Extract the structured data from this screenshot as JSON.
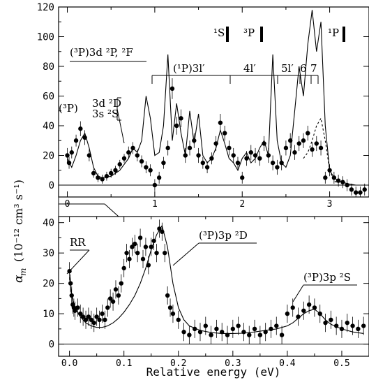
{
  "figure": {
    "y_label": "α",
    "y_label_sub": "m",
    "y_label_units": "(10⁻¹² cm³ s⁻¹)",
    "x_label": "Relative energy (eV)"
  },
  "chart_data": [
    {
      "type": "scatter",
      "panel": "top",
      "xlim": [
        -0.1,
        3.45
      ],
      "ylim": [
        -8,
        120
      ],
      "x_ticks": [
        "0",
        "1",
        "2",
        "3"
      ],
      "y_ticks": [
        "0",
        "20",
        "40",
        "60",
        "80",
        "100",
        "120"
      ],
      "grid": false,
      "annotations": [
        {
          "text": "(³P)3d ²P, ²F"
        },
        {
          "text": "(¹P)3l′"
        },
        {
          "text": "4l′"
        },
        {
          "text": "5l′"
        },
        {
          "text": "6"
        },
        {
          "text": "7"
        },
        {
          "text": "(³P)"
        },
        {
          "text": "3d ²D"
        },
        {
          "text": "3s ²S"
        },
        {
          "text": "¹S"
        },
        {
          "text": "³P"
        },
        {
          "text": "¹P"
        }
      ],
      "series": [
        {
          "style": "points_with_error_bars",
          "x": [
            0.0,
            0.02,
            0.05,
            0.1,
            0.15,
            0.2,
            0.25,
            0.3,
            0.35,
            0.4,
            0.45,
            0.5,
            0.55,
            0.6,
            0.65,
            0.7,
            0.75,
            0.8,
            0.85,
            0.9,
            0.95,
            1.0,
            1.05,
            1.1,
            1.15,
            1.2,
            1.25,
            1.3,
            1.35,
            1.4,
            1.45,
            1.5,
            1.55,
            1.6,
            1.65,
            1.7,
            1.75,
            1.8,
            1.85,
            1.9,
            1.95,
            2.0,
            2.05,
            2.1,
            2.15,
            2.2,
            2.25,
            2.3,
            2.35,
            2.4,
            2.45,
            2.5,
            2.55,
            2.6,
            2.65,
            2.7,
            2.75,
            2.8,
            2.85,
            2.9,
            2.95,
            3.0,
            3.05,
            3.1,
            3.15,
            3.2,
            3.25,
            3.3,
            3.35,
            3.4
          ],
          "y": [
            20,
            15,
            22,
            30,
            38,
            32,
            20,
            8,
            5,
            4,
            6,
            8,
            10,
            14,
            18,
            22,
            25,
            20,
            16,
            12,
            10,
            0,
            5,
            15,
            25,
            65,
            40,
            45,
            20,
            25,
            30,
            20,
            15,
            12,
            18,
            28,
            42,
            35,
            25,
            20,
            15,
            5,
            18,
            22,
            20,
            18,
            28,
            20,
            15,
            12,
            15,
            25,
            30,
            22,
            28,
            30,
            35,
            24,
            28,
            25,
            5,
            10,
            5,
            3,
            2,
            0,
            -3,
            -5,
            -5,
            -3
          ],
          "error": [
            5,
            4,
            4,
            4,
            5,
            5,
            4,
            3,
            3,
            3,
            3,
            3,
            3,
            3,
            3,
            4,
            4,
            4,
            4,
            4,
            4,
            4,
            4,
            4,
            5,
            7,
            6,
            6,
            5,
            5,
            5,
            5,
            4,
            4,
            4,
            5,
            6,
            5,
            5,
            5,
            4,
            4,
            5,
            5,
            5,
            5,
            5,
            5,
            5,
            5,
            5,
            5,
            5,
            5,
            5,
            5,
            5,
            5,
            5,
            5,
            4,
            4,
            4,
            4,
            4,
            4,
            4,
            4,
            4,
            4
          ]
        },
        {
          "style": "solid_line",
          "x": [
            0.0,
            0.05,
            0.1,
            0.15,
            0.2,
            0.25,
            0.3,
            0.35,
            0.4,
            0.5,
            0.6,
            0.7,
            0.75,
            0.8,
            0.85,
            0.9,
            0.95,
            1.0,
            1.05,
            1.1,
            1.15,
            1.2,
            1.25,
            1.3,
            1.35,
            1.4,
            1.45,
            1.5,
            1.55,
            1.6,
            1.65,
            1.7,
            1.75,
            1.8,
            1.85,
            1.9,
            1.95,
            2.0,
            2.05,
            2.1,
            2.15,
            2.2,
            2.25,
            2.3,
            2.35,
            2.4,
            2.45,
            2.5,
            2.55,
            2.6,
            2.65,
            2.7,
            2.75,
            2.8,
            2.85,
            2.9,
            2.95,
            3.0,
            3.05,
            3.1,
            3.2,
            3.3,
            3.4
          ],
          "y": [
            18,
            12,
            20,
            30,
            35,
            25,
            12,
            6,
            5,
            6,
            10,
            18,
            25,
            22,
            30,
            60,
            45,
            20,
            22,
            40,
            88,
            30,
            55,
            35,
            20,
            50,
            28,
            48,
            20,
            15,
            18,
            25,
            37,
            28,
            18,
            15,
            10,
            18,
            22,
            15,
            18,
            25,
            30,
            20,
            88,
            30,
            15,
            12,
            20,
            50,
            80,
            60,
            95,
            118,
            90,
            110,
            40,
            10,
            5,
            3,
            1,
            0,
            0
          ]
        },
        {
          "style": "dashed_line",
          "x": [
            2.7,
            2.75,
            2.8,
            2.85,
            2.9,
            2.95,
            3.0,
            3.05,
            3.1
          ],
          "y": [
            18,
            22,
            30,
            40,
            45,
            30,
            10,
            3,
            1
          ]
        }
      ]
    },
    {
      "type": "scatter",
      "panel": "bottom",
      "xlim": [
        -0.02,
        0.55
      ],
      "ylim": [
        -4,
        42
      ],
      "x_ticks": [
        "0.0",
        "0.1",
        "0.2",
        "0.3",
        "0.4",
        "0.5"
      ],
      "y_ticks": [
        "0",
        "10",
        "20",
        "30",
        "40"
      ],
      "grid": false,
      "annotations": [
        {
          "text": "RR"
        },
        {
          "text": "(³P)3p ²D"
        },
        {
          "text": "(³P)3p ²S"
        }
      ],
      "series": [
        {
          "style": "points_with_error_bars",
          "x": [
            0.0,
            0.002,
            0.004,
            0.006,
            0.008,
            0.01,
            0.015,
            0.02,
            0.025,
            0.03,
            0.035,
            0.04,
            0.045,
            0.05,
            0.055,
            0.06,
            0.065,
            0.07,
            0.075,
            0.08,
            0.085,
            0.09,
            0.095,
            0.1,
            0.105,
            0.11,
            0.115,
            0.12,
            0.125,
            0.13,
            0.135,
            0.14,
            0.145,
            0.15,
            0.155,
            0.16,
            0.165,
            0.17,
            0.175,
            0.18,
            0.185,
            0.19,
            0.2,
            0.21,
            0.22,
            0.23,
            0.24,
            0.25,
            0.26,
            0.27,
            0.28,
            0.29,
            0.3,
            0.31,
            0.32,
            0.33,
            0.34,
            0.35,
            0.36,
            0.37,
            0.38,
            0.39,
            0.4,
            0.41,
            0.42,
            0.43,
            0.44,
            0.45,
            0.46,
            0.47,
            0.48,
            0.49,
            0.5,
            0.51,
            0.52,
            0.53,
            0.54
          ],
          "y": [
            24,
            20,
            16,
            13,
            12,
            11,
            12,
            10,
            9,
            8,
            9,
            8,
            7,
            9,
            8,
            10,
            8,
            12,
            15,
            14,
            18,
            16,
            20,
            25,
            30,
            28,
            32,
            33,
            30,
            35,
            28,
            32,
            26,
            32,
            34,
            30,
            38,
            37,
            30,
            16,
            12,
            10,
            8,
            4,
            3,
            5,
            4,
            6,
            3,
            5,
            4,
            3,
            5,
            6,
            4,
            3,
            5,
            3,
            4,
            5,
            6,
            3,
            10,
            12,
            9,
            11,
            13,
            12,
            10,
            7,
            8,
            6,
            5,
            7,
            6,
            5,
            6
          ],
          "error": [
            3,
            3,
            3,
            3,
            3,
            3,
            3,
            3,
            3,
            3,
            3,
            3,
            3,
            3,
            3,
            3,
            3,
            3,
            3,
            3,
            3,
            3,
            3,
            3,
            3,
            3,
            3,
            3,
            3,
            3,
            3,
            3,
            3,
            3,
            3,
            3,
            3,
            3,
            3,
            3,
            3,
            3,
            3,
            3,
            3,
            3,
            3,
            3,
            3,
            3,
            3,
            3,
            3,
            3,
            3,
            3,
            3,
            3,
            3,
            3,
            3,
            3,
            3,
            3,
            3,
            3,
            3,
            3,
            3,
            3,
            3,
            3,
            3,
            3,
            3,
            3,
            3
          ]
        },
        {
          "style": "solid_line",
          "x": [
            0.0,
            0.005,
            0.01,
            0.02,
            0.03,
            0.04,
            0.05,
            0.06,
            0.07,
            0.08,
            0.09,
            0.1,
            0.11,
            0.12,
            0.13,
            0.14,
            0.15,
            0.16,
            0.17,
            0.18,
            0.19,
            0.2,
            0.21,
            0.22,
            0.24,
            0.26,
            0.28,
            0.3,
            0.32,
            0.34,
            0.36,
            0.38,
            0.4,
            0.41,
            0.42,
            0.43,
            0.44,
            0.45,
            0.46,
            0.47,
            0.48,
            0.5,
            0.52,
            0.54
          ],
          "y": [
            22,
            15,
            12,
            9,
            7,
            6,
            5.5,
            5.5,
            6,
            7,
            8.5,
            10.5,
            13,
            16,
            20,
            25,
            31,
            36,
            39,
            32,
            20,
            12,
            8,
            6,
            4.5,
            3.8,
            3.5,
            3.5,
            3.6,
            4,
            4.5,
            5,
            6,
            7,
            8.5,
            10,
            11,
            11.5,
            10,
            8,
            6.5,
            5,
            4,
            3.5
          ]
        }
      ]
    }
  ]
}
